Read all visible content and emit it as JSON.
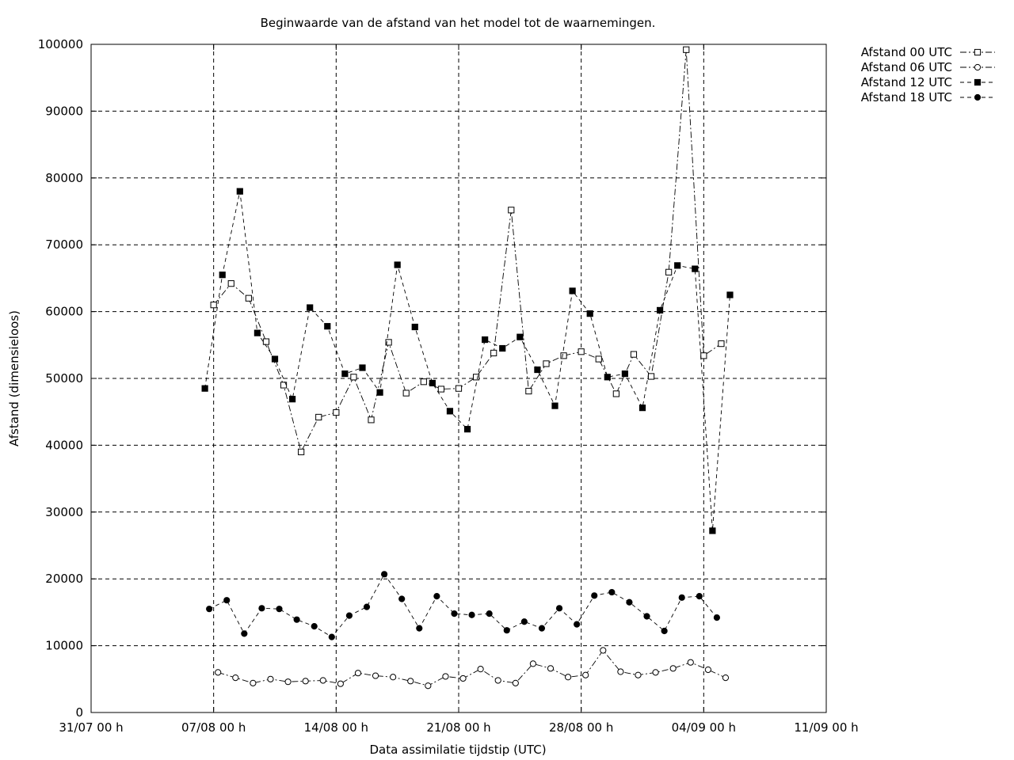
{
  "chart_data": {
    "type": "line",
    "title": "Beginwaarde van de afstand van het model tot de waarnemingen.",
    "xlabel": "Data assimilatie tijdstip (UTC)",
    "ylabel": "Afstand (dimensieloos)",
    "x_unit": "days since 31/07 00 h",
    "xlim": [
      0,
      42
    ],
    "ylim": [
      0,
      100000
    ],
    "x_ticks": [
      {
        "x": 0,
        "label": "31/07 00 h"
      },
      {
        "x": 7,
        "label": "07/08 00 h"
      },
      {
        "x": 14,
        "label": "14/08 00 h"
      },
      {
        "x": 21,
        "label": "21/08 00 h"
      },
      {
        "x": 28,
        "label": "28/08 00 h"
      },
      {
        "x": 35,
        "label": "04/09 00 h"
      },
      {
        "x": 42,
        "label": "11/09 00 h"
      }
    ],
    "y_ticks": [
      {
        "y": 0,
        "label": "0"
      },
      {
        "y": 10000,
        "label": "10000"
      },
      {
        "y": 20000,
        "label": "20000"
      },
      {
        "y": 30000,
        "label": "30000"
      },
      {
        "y": 40000,
        "label": "40000"
      },
      {
        "y": 50000,
        "label": "50000"
      },
      {
        "y": 60000,
        "label": "60000"
      },
      {
        "y": 70000,
        "label": "70000"
      },
      {
        "y": 80000,
        "label": "80000"
      },
      {
        "y": 90000,
        "label": "90000"
      },
      {
        "y": 100000,
        "label": "100000"
      }
    ],
    "grid": true,
    "legend_position": "outside-top-right",
    "series": [
      {
        "name": "Afstand 00 UTC",
        "marker": "open-square",
        "dash": "8,3,2,3",
        "x": [
          7,
          8,
          9,
          10,
          11,
          12,
          13,
          14,
          15,
          16,
          17,
          18,
          19,
          20,
          21,
          22,
          23,
          24,
          25,
          26,
          27,
          28,
          29,
          30,
          31,
          32,
          33,
          34,
          35,
          36
        ],
        "y": [
          61000,
          64200,
          62000,
          55500,
          49000,
          39000,
          44200,
          44900,
          50200,
          43800,
          55400,
          47800,
          49500,
          48400,
          48500,
          50200,
          53800,
          75200,
          48100,
          52200,
          53400,
          54000,
          52900,
          47700,
          53600,
          50300,
          65900,
          99200,
          53400,
          55200
        ]
      },
      {
        "name": "Afstand 06 UTC",
        "marker": "open-circle",
        "dash": "8,3,2,3",
        "x": [
          7.25,
          8.25,
          9.25,
          10.25,
          11.25,
          12.25,
          13.25,
          14.25,
          15.25,
          16.25,
          17.25,
          18.25,
          19.25,
          20.25,
          21.25,
          22.25,
          23.25,
          24.25,
          25.25,
          26.25,
          27.25,
          28.25,
          29.25,
          30.25,
          31.25,
          32.25,
          33.25,
          34.25,
          35.25,
          36.25
        ],
        "y": [
          6000,
          5200,
          4400,
          5000,
          4600,
          4700,
          4800,
          4300,
          5900,
          5500,
          5300,
          4700,
          4000,
          5400,
          5100,
          6500,
          4800,
          4400,
          7300,
          6600,
          5300,
          5600,
          9300,
          6100,
          5600,
          6000,
          6600,
          7500,
          6400,
          5200
        ]
      },
      {
        "name": "Afstand 12 UTC",
        "marker": "filled-square",
        "dash": "5,4",
        "x": [
          6.5,
          7.5,
          8.5,
          9.5,
          10.5,
          11.5,
          12.5,
          13.5,
          14.5,
          15.5,
          16.5,
          17.5,
          18.5,
          19.5,
          20.5,
          21.5,
          22.5,
          23.5,
          24.5,
          25.5,
          26.5,
          27.5,
          28.5,
          29.5,
          30.5,
          31.5,
          32.5,
          33.5,
          34.5,
          35.5,
          36.5
        ],
        "y": [
          48500,
          65500,
          78000,
          56800,
          52900,
          46900,
          60600,
          57800,
          50700,
          51600,
          47900,
          67000,
          57700,
          49300,
          45100,
          42400,
          55800,
          54500,
          56200,
          51300,
          45900,
          63100,
          59700,
          50200,
          50700,
          45600,
          60200,
          66900,
          66400,
          27200,
          62500
        ]
      },
      {
        "name": "Afstand 18 UTC",
        "marker": "filled-circle",
        "dash": "5,4",
        "x": [
          6.75,
          7.75,
          8.75,
          9.75,
          10.75,
          11.75,
          12.75,
          13.75,
          14.75,
          15.75,
          16.75,
          17.75,
          18.75,
          19.75,
          20.75,
          21.75,
          22.75,
          23.75,
          24.75,
          25.75,
          26.75,
          27.75,
          28.75,
          29.75,
          30.75,
          31.75,
          32.75,
          33.75,
          34.75,
          35.75
        ],
        "y": [
          15500,
          16800,
          11800,
          15600,
          15500,
          13900,
          12900,
          11300,
          14500,
          15800,
          20700,
          17000,
          12600,
          17400,
          14800,
          14600,
          14800,
          12300,
          13600,
          12600,
          15600,
          13200,
          17500,
          18000,
          16500,
          14400,
          12200,
          17200,
          17400,
          14200
        ]
      }
    ]
  }
}
